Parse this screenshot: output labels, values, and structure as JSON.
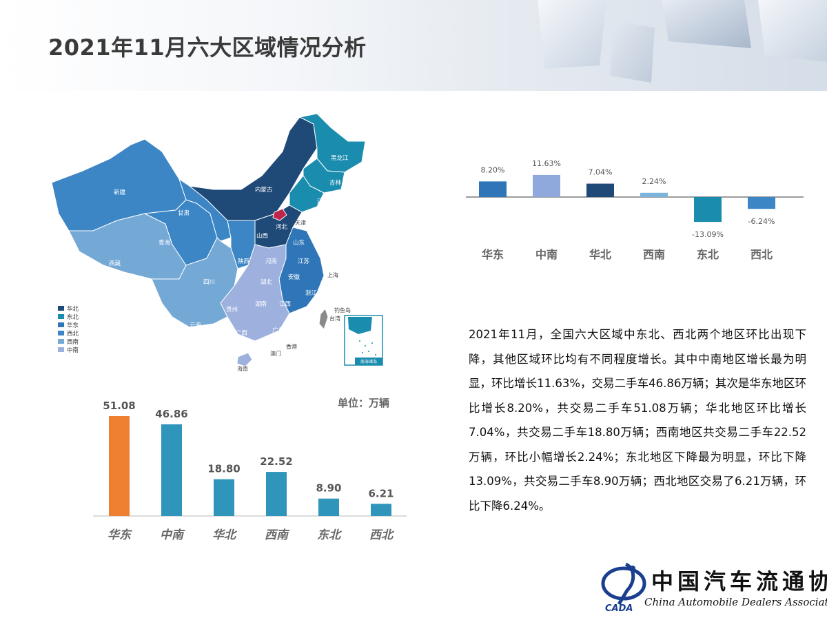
{
  "page": {
    "title": "2021年11月六大区域情况分析"
  },
  "colors": {
    "huabei": "#1f4a77",
    "dongbei": "#1a8cae",
    "huadong": "#2f76b8",
    "xibei": "#3d86c6",
    "xinan": "#74a8d5",
    "zhongnan": "#9db0de",
    "bar_orange": "#ef7f31",
    "bar_teal": "#2f95bb",
    "mom_huadong": "#2f76b8",
    "mom_zhongnan": "#8fa9dc",
    "mom_huabei": "#1f4a77",
    "mom_xinan": "#7bb3dc",
    "mom_dongbei": "#1a8cae",
    "mom_xibei": "#3d86c6"
  },
  "map": {
    "legend": [
      "华北",
      "东北",
      "华东",
      "西北",
      "西南",
      "中南"
    ],
    "labels": {
      "xinjiang": "新疆",
      "xizang": "西藏",
      "qinghai": "青海",
      "gansu": "甘肃",
      "neimenggu": "内蒙古",
      "heilongjiang": "黑龙江",
      "jilin": "吉林",
      "liaoning": "辽宁",
      "hebei": "河北",
      "shanxi": "山西",
      "tianjin": "天津",
      "shandong": "山东",
      "shaanxi": "陕西",
      "henan": "河南",
      "jiangsu": "江苏",
      "anhui": "安徽",
      "shanghai": "上海",
      "sichuan": "四川",
      "hubei": "湖北",
      "zhejiang": "浙江",
      "hunan": "湖南",
      "jiangxi": "江西",
      "guizhou": "贵州",
      "fujian": "福建",
      "yunnan": "云南",
      "guangxi": "广西",
      "guangdong": "广东",
      "taiwan": "台湾",
      "hongkong": "香港",
      "macau": "澳门",
      "hainan": "海南",
      "diaoyu": "钓鱼岛",
      "nanhai": "南海诸岛"
    }
  },
  "chart_data": [
    {
      "type": "bar",
      "title": "",
      "unit_label": "单位：万辆",
      "categories": [
        "华东",
        "中南",
        "华北",
        "西南",
        "东北",
        "西北"
      ],
      "values": [
        51.08,
        46.86,
        18.8,
        22.52,
        8.9,
        6.21
      ],
      "value_labels": [
        "51.08",
        "46.86",
        "18.80",
        "22.52",
        "8.90",
        "6.21"
      ],
      "bar_colors": [
        "#ef7f31",
        "#2f95bb",
        "#2f95bb",
        "#2f95bb",
        "#2f95bb",
        "#2f95bb"
      ],
      "ylim": [
        0,
        51.08
      ],
      "grid": false
    },
    {
      "type": "bar",
      "title": "",
      "categories": [
        "华东",
        "中南",
        "华北",
        "西南",
        "东北",
        "西北"
      ],
      "values": [
        8.2,
        11.63,
        7.04,
        2.24,
        -13.09,
        -6.24
      ],
      "value_labels": [
        "8.20%",
        "11.63%",
        "7.04%",
        "2.24%",
        "-13.09%",
        "-6.24%"
      ],
      "bar_colors": [
        "#2f76b8",
        "#8fa9dc",
        "#1f4a77",
        "#7bb3dc",
        "#1a8cae",
        "#3d86c6"
      ],
      "ylim": [
        -13.09,
        11.63
      ],
      "grid": false
    }
  ],
  "description": "2021年11月，全国六大区域中东北、西北两个地区环比出现下降，其他区域环比均有不同程度增长。其中中南地区增长最为明显，环比增长11.63%，交易二手车46.86万辆；其次是华东地区环比增长8.20%，共交易二手车51.08万辆；华北地区环比增长7.04%，共交易二手车18.80万辆；西南地区共交易二手车22.52万辆，环比小幅增长2.24%；东北地区下降最为明显，环比下降13.09%，共交易二手车8.90万辆；西北地区交易了6.21万辆，环比下降6.24%。",
  "logo": {
    "cn": "中国汽车流通协会",
    "en": "China Automobile Dealers Association",
    "abbr": "CADA"
  }
}
